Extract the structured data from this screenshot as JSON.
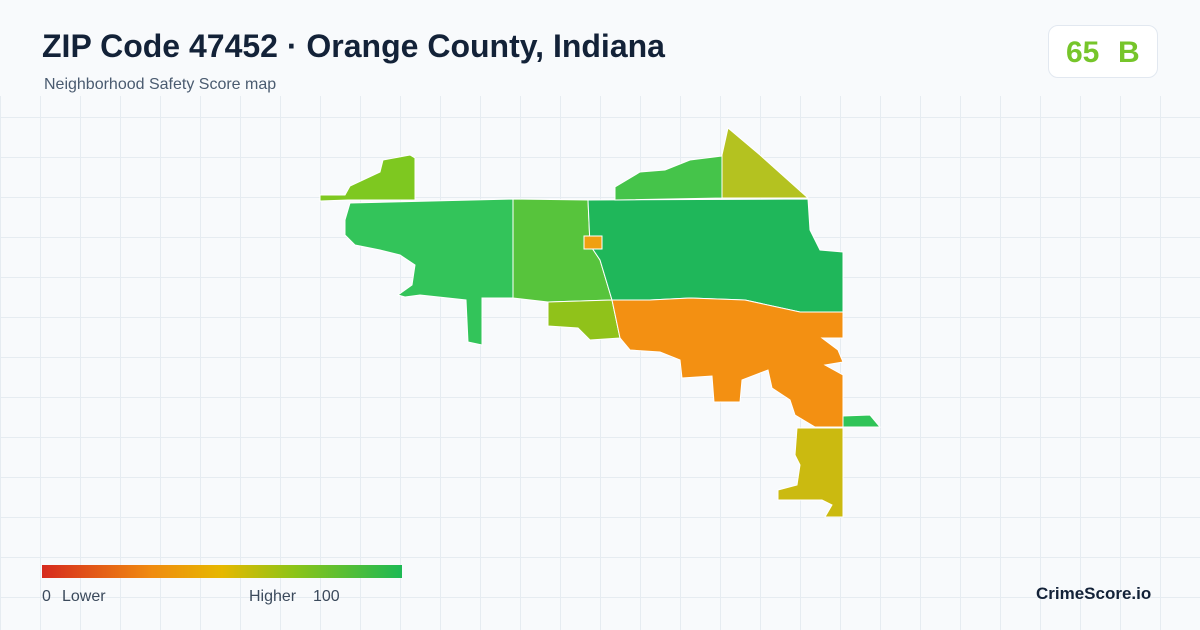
{
  "header": {
    "title": "ZIP Code 47452 · Orange County, Indiana",
    "subtitle": "Neighborhood Safety Score map"
  },
  "score": {
    "value": "65",
    "grade": "B"
  },
  "legend": {
    "min": "0",
    "min_label": "Lower",
    "max_label": "Higher",
    "max": "100"
  },
  "brand": "CrimeScore.io"
}
